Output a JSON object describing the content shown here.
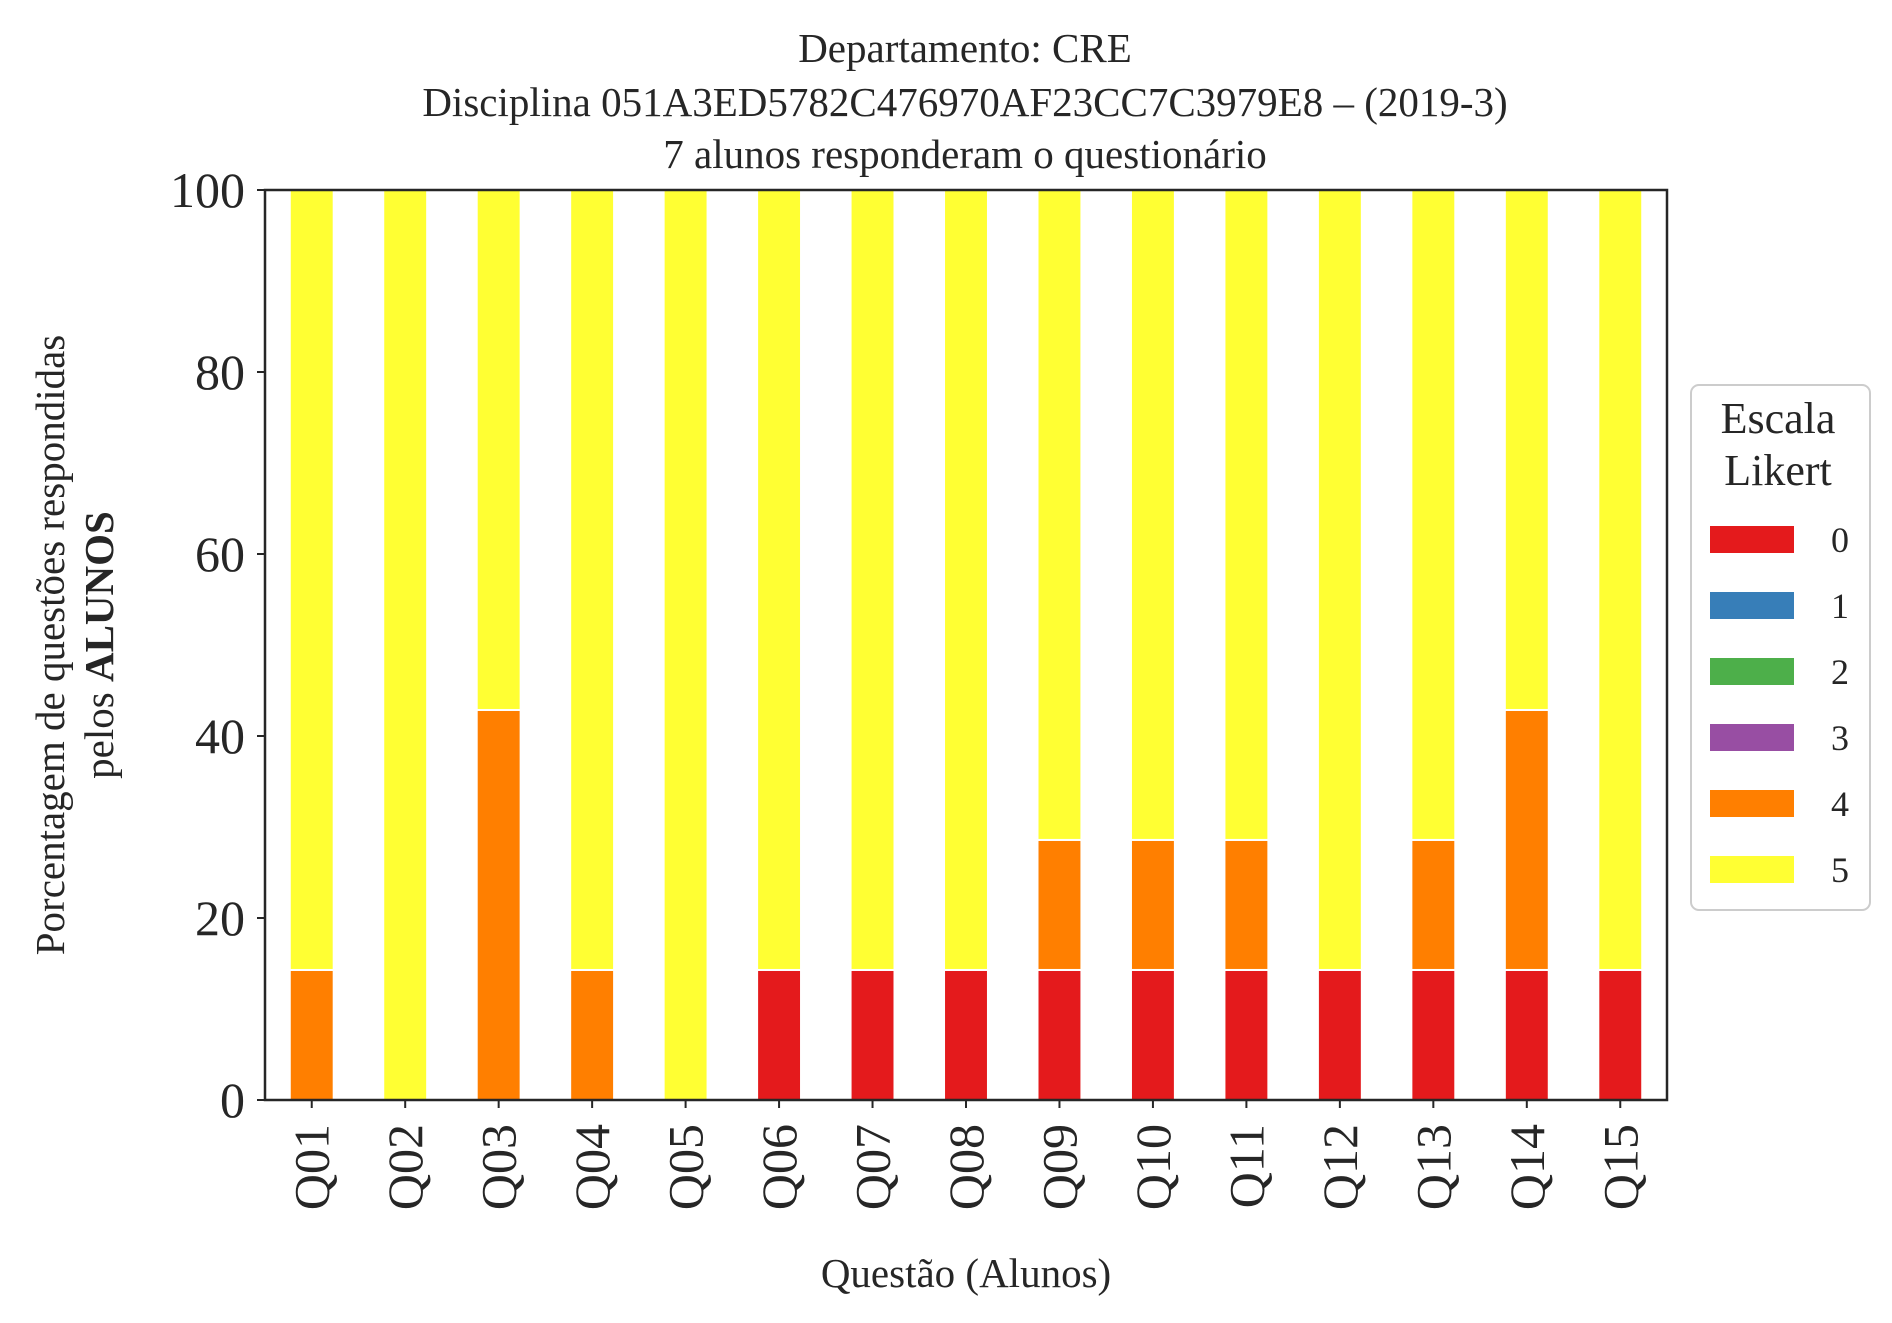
{
  "chart_data": {
    "type": "bar",
    "stacked": true,
    "title_lines": [
      "Departamento: CRE",
      "Disciplina 051A3ED5782C476970AF23CC7C3979E8 – (2019-3)",
      "7 alunos responderam o questionário"
    ],
    "xlabel": "Questão (Alunos)",
    "ylabel_line1": "Porcentagem de questões respondidas",
    "ylabel_line2_prefix": "pelos ",
    "ylabel_line2_bold": "ALUNOS",
    "ylim": [
      0,
      100
    ],
    "yticks": [
      "0",
      "20",
      "40",
      "60",
      "80",
      "100"
    ],
    "categories": [
      "Q01",
      "Q02",
      "Q03",
      "Q04",
      "Q05",
      "Q06",
      "Q07",
      "Q08",
      "Q09",
      "Q10",
      "Q11",
      "Q12",
      "Q13",
      "Q14",
      "Q15"
    ],
    "legend": {
      "title_lines": [
        "Escala",
        "Likert"
      ],
      "placement": "center-right-outside"
    },
    "series": [
      {
        "name": "0",
        "color": "#e41a1c",
        "values": [
          0,
          0,
          0,
          0,
          0,
          14.29,
          14.29,
          14.29,
          14.29,
          14.29,
          14.29,
          14.29,
          14.29,
          14.29,
          14.29
        ]
      },
      {
        "name": "1",
        "color": "#377eb8",
        "values": [
          0,
          0,
          0,
          0,
          0,
          0,
          0,
          0,
          0,
          0,
          0,
          0,
          0,
          0,
          0
        ]
      },
      {
        "name": "2",
        "color": "#4daf4a",
        "values": [
          0,
          0,
          0,
          0,
          0,
          0,
          0,
          0,
          0,
          0,
          0,
          0,
          0,
          0,
          0
        ]
      },
      {
        "name": "3",
        "color": "#984ea3",
        "values": [
          0,
          0,
          0,
          0,
          0,
          0,
          0,
          0,
          0,
          0,
          0,
          0,
          0,
          0,
          0
        ]
      },
      {
        "name": "4",
        "color": "#ff7f00",
        "values": [
          14.29,
          0,
          42.86,
          14.29,
          0,
          0,
          0,
          0,
          14.29,
          14.29,
          14.29,
          0,
          14.29,
          28.57,
          0
        ]
      },
      {
        "name": "5",
        "color": "#ffff33",
        "values": [
          85.71,
          100,
          57.14,
          85.71,
          100,
          85.71,
          85.71,
          85.71,
          71.43,
          71.43,
          71.43,
          85.71,
          71.43,
          57.14,
          85.71
        ]
      }
    ]
  }
}
